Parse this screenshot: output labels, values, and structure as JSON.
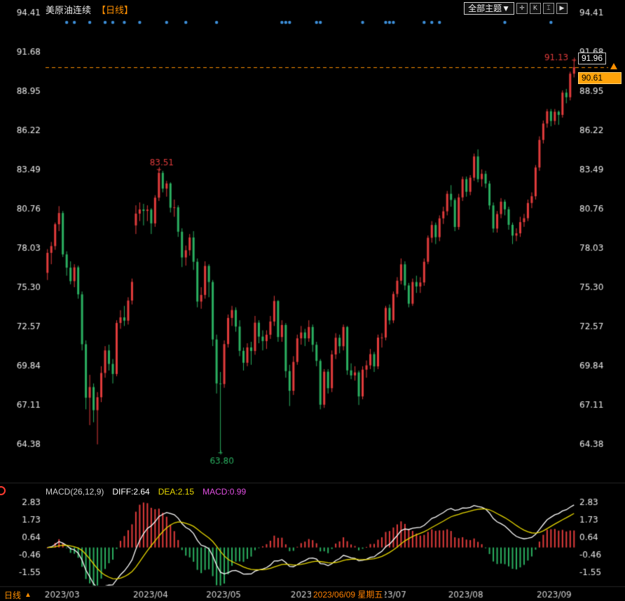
{
  "header": {
    "title": "美原油连续",
    "period_tag": "【日线】",
    "theme_dropdown": "全部主题▼",
    "tool_icons": {
      "pan": "✛",
      "kline": "K",
      "indicator": "⌶",
      "play": "▶"
    }
  },
  "right_scale": {
    "crosshair_price": "91.96",
    "latest_price": "90.61"
  },
  "macd_panel": {
    "formula": "MACD(26,12,9)",
    "diff_label": "DIFF:2.64",
    "dea_label": "DEA:2.15",
    "macd_label": "MACD:0.99"
  },
  "footer": {
    "period": "日线",
    "arrow": "▲",
    "crosshair_date": "2023/06/09 星期五"
  },
  "colors": {
    "up": "#e23c3c",
    "down": "#2bb061",
    "accent": "#ff9000",
    "marker_blue": "#3d8fd9",
    "diff_line": "#ffffff",
    "dea_line": "#e8d800",
    "macd_value": "#e24fe2",
    "axis_text": "#e8e8e8"
  },
  "chart_data": {
    "type": "candlestick",
    "title": "美原油连续 日线 (WTI crude continuous, daily)",
    "price_range": [
      64.38,
      94.41
    ],
    "price_ticks": [
      "94.41",
      "91.68",
      "88.95",
      "86.22",
      "83.49",
      "80.76",
      "78.03",
      "75.30",
      "72.57",
      "69.84",
      "67.11",
      "64.38"
    ],
    "macd_ticks": [
      "2.83",
      "1.73",
      "0.64",
      "-0.46",
      "-1.55"
    ],
    "month_ticks": [
      {
        "i": 0,
        "label": "2023/03"
      },
      {
        "i": 23,
        "label": "2023/04"
      },
      {
        "i": 42,
        "label": "2023/05"
      },
      {
        "i": 64,
        "label": "2023/06"
      },
      {
        "i": 85,
        "label": "2023/07"
      },
      {
        "i": 105,
        "label": "2023/08"
      },
      {
        "i": 128,
        "label": "2023/09"
      }
    ],
    "event_marker_indices": [
      5,
      7,
      11,
      15,
      17,
      20,
      24,
      31,
      36,
      44,
      61,
      62,
      63,
      70,
      71,
      82,
      88,
      89,
      90,
      98,
      100,
      102,
      119,
      131
    ],
    "annotations": [
      {
        "i": 29,
        "price": 83.51,
        "text": "83.51",
        "color": "#e23c3c",
        "pos": "above"
      },
      {
        "i": 45,
        "price": 63.8,
        "text": "63.80",
        "color": "#2bb061",
        "pos": "below"
      },
      {
        "i": 137,
        "price": 91.13,
        "text": "91.13",
        "color": "#e23c3c",
        "pos": "left"
      }
    ],
    "latest_price": 90.61,
    "macd_params": {
      "slow": 26,
      "fast": 12,
      "signal": 9,
      "diff": 2.64,
      "dea": 2.15,
      "macd": 0.99
    },
    "candles": [
      [
        76.3,
        77.95,
        75.8,
        77.69
      ],
      [
        77.69,
        78.45,
        76.9,
        78.16
      ],
      [
        78.16,
        79.8,
        77.9,
        79.68
      ],
      [
        79.68,
        80.94,
        79.2,
        80.46
      ],
      [
        80.46,
        80.6,
        77.4,
        77.58
      ],
      [
        77.58,
        77.8,
        76.1,
        76.66
      ],
      [
        76.66,
        77.1,
        75.5,
        75.72
      ],
      [
        75.72,
        76.9,
        75.3,
        76.68
      ],
      [
        76.68,
        76.8,
        74.5,
        74.8
      ],
      [
        74.8,
        75.0,
        70.9,
        71.33
      ],
      [
        71.33,
        71.6,
        66.8,
        67.61
      ],
      [
        67.61,
        69.2,
        65.7,
        68.35
      ],
      [
        68.35,
        68.6,
        65.9,
        66.74
      ],
      [
        66.74,
        68.0,
        64.36,
        67.64
      ],
      [
        67.64,
        69.8,
        67.3,
        69.33
      ],
      [
        69.33,
        71.2,
        69.0,
        70.9
      ],
      [
        70.9,
        71.3,
        69.5,
        69.96
      ],
      [
        69.96,
        70.3,
        68.6,
        69.26
      ],
      [
        69.26,
        73.0,
        69.1,
        72.81
      ],
      [
        72.81,
        73.7,
        72.4,
        73.2
      ],
      [
        73.2,
        74.0,
        72.6,
        72.97
      ],
      [
        72.97,
        74.6,
        72.7,
        74.37
      ],
      [
        74.37,
        75.9,
        74.1,
        75.67
      ],
      [
        79.6,
        81.0,
        79.0,
        80.42
      ],
      [
        80.42,
        81.2,
        79.9,
        80.71
      ],
      [
        80.71,
        81.1,
        79.6,
        80.61
      ],
      [
        80.61,
        81.0,
        79.9,
        80.7
      ],
      [
        80.7,
        80.8,
        79.0,
        79.74
      ],
      [
        79.74,
        81.7,
        79.5,
        81.53
      ],
      [
        81.53,
        83.51,
        81.3,
        83.26
      ],
      [
        83.26,
        83.4,
        81.9,
        82.16
      ],
      [
        82.16,
        82.7,
        81.6,
        82.52
      ],
      [
        82.52,
        82.6,
        80.5,
        80.83
      ],
      [
        80.83,
        81.4,
        80.2,
        80.86
      ],
      [
        80.86,
        81.0,
        78.8,
        79.16
      ],
      [
        79.16,
        79.4,
        76.7,
        77.37
      ],
      [
        77.37,
        78.2,
        76.8,
        77.87
      ],
      [
        77.87,
        79.0,
        77.5,
        78.76
      ],
      [
        78.76,
        79.2,
        76.5,
        77.07
      ],
      [
        77.07,
        77.3,
        73.9,
        74.3
      ],
      [
        74.3,
        75.3,
        73.8,
        74.76
      ],
      [
        74.76,
        77.1,
        74.5,
        76.78
      ],
      [
        76.78,
        76.9,
        74.6,
        75.66
      ],
      [
        75.66,
        75.8,
        71.2,
        71.66
      ],
      [
        71.66,
        72.0,
        67.9,
        68.6
      ],
      [
        68.6,
        69.4,
        63.8,
        68.56
      ],
      [
        68.56,
        71.6,
        68.3,
        71.34
      ],
      [
        71.34,
        73.4,
        71.1,
        73.16
      ],
      [
        73.16,
        74.0,
        72.6,
        73.71
      ],
      [
        73.71,
        73.9,
        72.2,
        72.56
      ],
      [
        72.56,
        73.0,
        70.5,
        70.87
      ],
      [
        70.87,
        71.1,
        69.5,
        70.04
      ],
      [
        70.04,
        71.4,
        69.8,
        71.11
      ],
      [
        71.11,
        71.5,
        69.9,
        70.86
      ],
      [
        70.86,
        73.3,
        70.6,
        72.83
      ],
      [
        72.83,
        73.0,
        71.4,
        71.86
      ],
      [
        71.86,
        72.3,
        70.9,
        71.55
      ],
      [
        71.55,
        72.3,
        71.0,
        71.99
      ],
      [
        71.99,
        73.3,
        71.7,
        72.91
      ],
      [
        72.91,
        74.7,
        72.6,
        74.34
      ],
      [
        74.34,
        74.4,
        71.5,
        71.83
      ],
      [
        71.83,
        73.0,
        71.5,
        72.67
      ],
      [
        72.67,
        72.8,
        69.0,
        69.46
      ],
      [
        69.46,
        69.9,
        67.03,
        68.09
      ],
      [
        68.09,
        70.5,
        67.8,
        70.1
      ],
      [
        70.1,
        72.0,
        69.9,
        71.74
      ],
      [
        71.74,
        72.6,
        71.3,
        72.15
      ],
      [
        72.15,
        72.4,
        71.2,
        71.74
      ],
      [
        71.74,
        73.0,
        71.5,
        72.53
      ],
      [
        72.53,
        72.7,
        70.8,
        71.29
      ],
      [
        71.29,
        71.5,
        69.8,
        70.17
      ],
      [
        70.17,
        70.3,
        66.8,
        67.12
      ],
      [
        67.12,
        69.6,
        66.9,
        69.42
      ],
      [
        69.42,
        69.6,
        67.9,
        68.27
      ],
      [
        68.27,
        70.9,
        68.0,
        70.62
      ],
      [
        70.62,
        72.1,
        70.3,
        71.78
      ],
      [
        71.78,
        72.0,
        70.7,
        71.19
      ],
      [
        71.19,
        72.7,
        70.9,
        72.53
      ],
      [
        72.53,
        72.6,
        69.2,
        69.51
      ],
      [
        69.51,
        70.0,
        68.9,
        69.16
      ],
      [
        69.16,
        69.8,
        68.8,
        69.37
      ],
      [
        69.37,
        69.5,
        67.1,
        67.7
      ],
      [
        67.7,
        69.8,
        67.5,
        69.56
      ],
      [
        69.56,
        70.2,
        69.0,
        69.86
      ],
      [
        69.86,
        71.0,
        69.6,
        70.64
      ],
      [
        70.64,
        70.8,
        69.4,
        69.79
      ],
      [
        69.79,
        72.0,
        69.6,
        71.79
      ],
      [
        71.79,
        72.1,
        71.1,
        71.8
      ],
      [
        71.8,
        74.0,
        71.6,
        73.86
      ],
      [
        73.86,
        74.1,
        72.7,
        72.99
      ],
      [
        72.99,
        75.0,
        72.8,
        74.83
      ],
      [
        74.83,
        76.0,
        74.6,
        75.75
      ],
      [
        75.75,
        77.3,
        75.5,
        76.89
      ],
      [
        76.89,
        77.1,
        75.1,
        75.42
      ],
      [
        75.42,
        75.6,
        73.9,
        74.15
      ],
      [
        74.15,
        75.9,
        74.0,
        75.66
      ],
      [
        75.66,
        76.1,
        74.9,
        75.35
      ],
      [
        75.35,
        76.0,
        74.9,
        75.63
      ],
      [
        75.63,
        77.3,
        75.4,
        77.07
      ],
      [
        77.07,
        78.9,
        76.9,
        78.74
      ],
      [
        78.74,
        79.9,
        78.4,
        79.63
      ],
      [
        79.63,
        79.8,
        78.3,
        78.78
      ],
      [
        78.78,
        80.3,
        78.5,
        80.09
      ],
      [
        80.09,
        80.9,
        79.7,
        80.58
      ],
      [
        80.58,
        82.0,
        80.3,
        81.8
      ],
      [
        81.8,
        82.4,
        80.9,
        81.37
      ],
      [
        81.37,
        81.5,
        79.2,
        79.49
      ],
      [
        79.49,
        81.8,
        79.3,
        81.55
      ],
      [
        81.55,
        83.0,
        81.3,
        82.82
      ],
      [
        82.82,
        83.0,
        81.6,
        81.94
      ],
      [
        81.94,
        83.1,
        81.7,
        82.92
      ],
      [
        82.92,
        84.6,
        82.7,
        84.4
      ],
      [
        84.4,
        84.89,
        82.6,
        82.82
      ],
      [
        82.82,
        83.5,
        82.3,
        83.19
      ],
      [
        83.19,
        83.4,
        82.2,
        82.51
      ],
      [
        82.51,
        82.7,
        80.7,
        80.99
      ],
      [
        80.99,
        81.2,
        79.1,
        79.38
      ],
      [
        79.38,
        80.6,
        79.1,
        80.39
      ],
      [
        80.39,
        81.5,
        80.1,
        81.25
      ],
      [
        81.25,
        81.4,
        80.3,
        80.72
      ],
      [
        80.72,
        80.9,
        79.3,
        79.64
      ],
      [
        79.64,
        79.8,
        78.3,
        78.89
      ],
      [
        78.89,
        79.4,
        78.5,
        79.05
      ],
      [
        79.05,
        80.2,
        78.8,
        79.83
      ],
      [
        79.83,
        80.4,
        79.5,
        80.1
      ],
      [
        80.1,
        81.4,
        79.9,
        81.16
      ],
      [
        81.16,
        81.9,
        80.8,
        81.63
      ],
      [
        81.63,
        83.8,
        81.4,
        83.63
      ],
      [
        83.63,
        85.8,
        83.4,
        85.55
      ],
      [
        85.55,
        86.9,
        85.3,
        86.69
      ],
      [
        86.69,
        87.7,
        86.4,
        87.54
      ],
      [
        87.54,
        87.7,
        86.5,
        86.87
      ],
      [
        86.87,
        87.7,
        86.6,
        87.51
      ],
      [
        87.51,
        87.6,
        86.6,
        87.29
      ],
      [
        87.29,
        89.0,
        87.1,
        88.84
      ],
      [
        88.84,
        89.1,
        88.1,
        88.52
      ],
      [
        88.52,
        90.3,
        88.3,
        90.16
      ],
      [
        90.16,
        91.13,
        89.9,
        90.61
      ]
    ]
  }
}
